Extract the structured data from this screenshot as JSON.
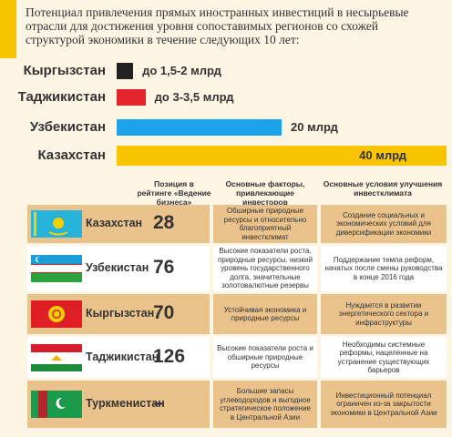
{
  "header": {
    "title": "Потенциал привлечения прямых иностранных инвестиций в несырьевые отрасли для достижения уровня сопоставимых регионов со схожей структурой экономики в течение следующих 10 лет:"
  },
  "chart_data": {
    "type": "bar",
    "orientation": "horizontal",
    "categories": [
      "Кыргызстан",
      "Таджикистан",
      "Узбекистан",
      "Казахстан"
    ],
    "values": [
      2,
      3.5,
      20,
      40
    ],
    "value_labels": [
      "до 1,5-2 млрд",
      "до 3-3,5 млрд",
      "20 млрд",
      "40 млрд"
    ],
    "colors": [
      "#222222",
      "#e3262d",
      "#1ba4ea",
      "#f8c300"
    ],
    "xlim": [
      0,
      40
    ]
  },
  "table": {
    "columns": [
      "Позиция в рейтинге «Ведение бизнеса»",
      "Основные факторы, привлекающие инвесторов",
      "Основные условия улучшения инвестклимата"
    ],
    "rows": [
      [
        "Казахстан",
        "28",
        "Обширные природные ресурсы и относительно благоприятный инвестклимат",
        "Создание социальных и экономических условий для диверсификации экономики"
      ],
      [
        "Узбекистан",
        "76",
        "Высокие показатели роста, природные ресурсы, низкий уровень государственного долга, значительные золотовалютные резервы",
        "Поддержание темпа реформ, начатых после смены руководства в конце 2016 года"
      ],
      [
        "Кыргызстан",
        "70",
        "Устойчивая экономика и природные ресурсы",
        "Нуждается в развитии энергетического сектора и инфраструктуры"
      ],
      [
        "Таджикистан",
        "126",
        "Высокие показатели роста и обширные природные ресурсы",
        "Необходимы системные реформы, нацеленные на устранение существующих барьеров"
      ],
      [
        "Туркменистан",
        "–",
        "Большие запасы углеводородов и выгодное стратегическое положение в Центральной Азии",
        "Инвестиционный потенциал ограничен из-за закрытости экономики в Центральной Азии"
      ]
    ]
  }
}
